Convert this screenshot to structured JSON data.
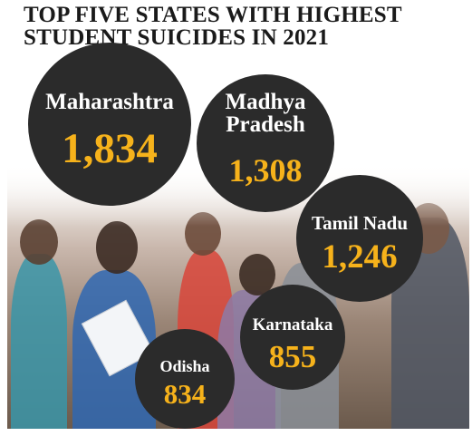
{
  "title_lines": [
    "TOP FIVE STATES WITH HIGHEST",
    "STUDENT SUICIDES IN 2021"
  ],
  "colors": {
    "bubble": "#2b2b2b",
    "value": "#f6b21b",
    "label": "#ffffff"
  },
  "chart_data": {
    "type": "bubble",
    "title": "TOP FIVE STATES WITH HIGHEST STUDENT SUICIDES IN 2021",
    "categories": [
      "Maharashtra",
      "Madhya Pradesh",
      "Tamil Nadu",
      "Karnataka",
      "Odisha"
    ],
    "values": [
      1834,
      1308,
      1246,
      855,
      834
    ],
    "value_labels": [
      "1,834",
      "1,308",
      "1,246",
      "855",
      "834"
    ],
    "label_lines": [
      [
        "Maharashtra"
      ],
      [
        "Madhya",
        "Pradesh"
      ],
      [
        "Tamil Nadu"
      ],
      [
        "Karnataka"
      ],
      [
        "Odisha"
      ]
    ]
  }
}
